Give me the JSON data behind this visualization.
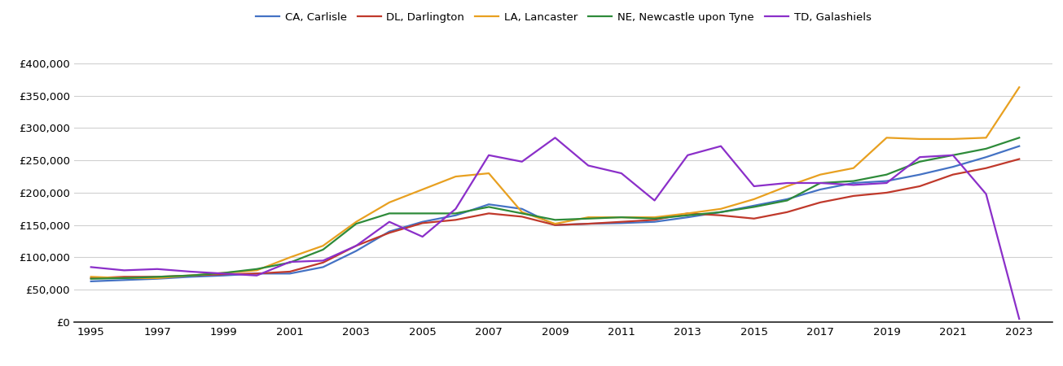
{
  "years": [
    1995,
    1996,
    1997,
    1998,
    1999,
    2000,
    2001,
    2002,
    2003,
    2004,
    2005,
    2006,
    2007,
    2008,
    2009,
    2010,
    2011,
    2012,
    2013,
    2014,
    2015,
    2016,
    2017,
    2018,
    2019,
    2020,
    2021,
    2022,
    2023
  ],
  "CA_Carlisle": [
    63000,
    65000,
    67000,
    70000,
    72000,
    75000,
    75000,
    85000,
    110000,
    140000,
    155000,
    165000,
    182000,
    175000,
    150000,
    152000,
    153000,
    155000,
    162000,
    170000,
    180000,
    190000,
    205000,
    215000,
    218000,
    228000,
    240000,
    255000,
    272000
  ],
  "DL_Darlington": [
    68000,
    70000,
    70000,
    72000,
    74000,
    75000,
    78000,
    92000,
    118000,
    138000,
    153000,
    158000,
    168000,
    163000,
    150000,
    152000,
    155000,
    158000,
    168000,
    165000,
    160000,
    170000,
    185000,
    195000,
    200000,
    210000,
    228000,
    238000,
    252000
  ],
  "LA_Lancaster": [
    70000,
    68000,
    68000,
    72000,
    76000,
    80000,
    100000,
    118000,
    155000,
    185000,
    205000,
    225000,
    230000,
    170000,
    152000,
    162000,
    162000,
    162000,
    168000,
    175000,
    190000,
    210000,
    228000,
    238000,
    285000,
    283000,
    283000,
    285000,
    363000
  ],
  "NE_Newcastle": [
    67000,
    68000,
    70000,
    72000,
    76000,
    82000,
    92000,
    112000,
    152000,
    168000,
    168000,
    168000,
    178000,
    168000,
    158000,
    160000,
    162000,
    160000,
    165000,
    170000,
    178000,
    188000,
    215000,
    218000,
    228000,
    248000,
    258000,
    268000,
    285000
  ],
  "TD_Galashiels": [
    85000,
    80000,
    82000,
    78000,
    75000,
    72000,
    93000,
    95000,
    118000,
    155000,
    132000,
    175000,
    258000,
    248000,
    285000,
    242000,
    230000,
    188000,
    258000,
    272000,
    210000,
    215000,
    215000,
    212000,
    215000,
    255000,
    258000,
    198000,
    5000
  ],
  "series_colors": {
    "CA_Carlisle": "#4472C4",
    "DL_Darlington": "#C0392B",
    "LA_Lancaster": "#E8A020",
    "NE_Newcastle": "#2E8B3A",
    "TD_Galashiels": "#8B2FC9"
  },
  "legend_labels": {
    "CA_Carlisle": "CA, Carlisle",
    "DL_Darlington": "DL, Darlington",
    "LA_Lancaster": "LA, Lancaster",
    "NE_Newcastle": "NE, Newcastle upon Tyne",
    "TD_Galashiels": "TD, Galashiels"
  },
  "ylim": [
    0,
    430000
  ],
  "yticks": [
    0,
    50000,
    100000,
    150000,
    200000,
    250000,
    300000,
    350000,
    400000
  ],
  "xlim": [
    1994.5,
    2024.0
  ],
  "xticks": [
    1995,
    1997,
    1999,
    2001,
    2003,
    2005,
    2007,
    2009,
    2011,
    2013,
    2015,
    2017,
    2019,
    2021,
    2023
  ],
  "background_color": "#ffffff",
  "grid_color": "#d0d0d0"
}
